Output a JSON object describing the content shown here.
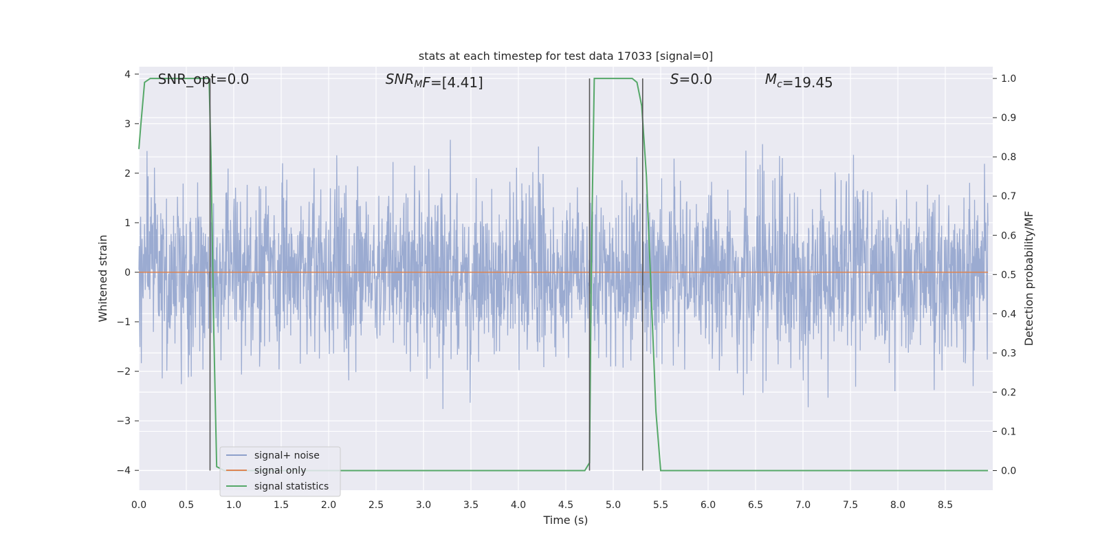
{
  "chart_data": {
    "type": "line",
    "title": "stats at each timestep for test data 17033 [signal=0]",
    "xlabel": "Time (s)",
    "ylabel_left": "Whitened strain",
    "ylabel_right": "Detection probability/MF",
    "xlim": [
      0.0,
      9.0
    ],
    "ylim_left": [
      -4.4,
      4.15
    ],
    "ylim_right": [
      -0.05,
      1.03
    ],
    "x_ticks": [
      "0.0",
      "0.5",
      "1.0",
      "1.5",
      "2.0",
      "2.5",
      "3.0",
      "3.5",
      "4.0",
      "4.5",
      "5.0",
      "5.5",
      "6.0",
      "6.5",
      "7.0",
      "7.5",
      "8.0",
      "8.5"
    ],
    "y_left_ticks": [
      "4",
      "3",
      "2",
      "1",
      "0",
      "−1",
      "−2",
      "−3",
      "−4"
    ],
    "y_right_ticks": [
      "1.0",
      "0.9",
      "0.8",
      "0.7",
      "0.6",
      "0.5",
      "0.4",
      "0.3",
      "0.2",
      "0.1",
      "0.0"
    ],
    "grid": true,
    "legend_placement": "lower-left",
    "annotations": [
      {
        "id": "snr-opt",
        "prefix": "SNR_opt",
        "suffix": "=0.0",
        "x": 0.2
      },
      {
        "id": "snr-mf",
        "prefix": "SNR",
        "sub": "M",
        "prefix2": "F",
        "suffix": "=[4.41]",
        "x": 2.6
      },
      {
        "id": "s",
        "prefix": "S",
        "suffix": "=0.0",
        "x": 5.6
      },
      {
        "id": "mc",
        "prefix": "M",
        "sub": "c",
        "suffix": "=19.45",
        "x": 6.6
      }
    ],
    "vlines": [
      0.75,
      4.75,
      5.31
    ],
    "vline_range_right": [
      0.0,
      1.0
    ],
    "series": [
      {
        "name": "signal+ noise",
        "color": "#8da0cb",
        "axis": "left",
        "generated": {
          "n": 2400,
          "seed": 17033,
          "std": 0.85,
          "x_end": 8.95
        }
      },
      {
        "name": "signal only",
        "color": "#dd8452",
        "axis": "left",
        "x": [
          0.0,
          8.95
        ],
        "y": [
          0.0,
          0.0
        ]
      },
      {
        "name": "signal statistics",
        "color": "#55a868",
        "axis": "right",
        "x": [
          0.0,
          0.02,
          0.06,
          0.12,
          0.2,
          0.4,
          0.6,
          0.7,
          0.74,
          0.76,
          0.79,
          0.82,
          0.9,
          1.0,
          2.0,
          3.0,
          4.0,
          4.5,
          4.7,
          4.75,
          4.77,
          4.8,
          4.9,
          5.0,
          5.1,
          5.2,
          5.25,
          5.3,
          5.35,
          5.4,
          5.45,
          5.5,
          5.55,
          6.0,
          7.0,
          8.0,
          8.95
        ],
        "y": [
          0.82,
          0.88,
          0.99,
          1.0,
          1.0,
          1.0,
          1.0,
          1.0,
          1.0,
          0.8,
          0.35,
          0.01,
          0.0,
          0.0,
          0.0,
          0.0,
          0.0,
          0.0,
          0.0,
          0.02,
          0.55,
          1.0,
          1.0,
          1.0,
          1.0,
          1.0,
          0.99,
          0.93,
          0.75,
          0.45,
          0.15,
          0.0,
          0.0,
          0.0,
          0.0,
          0.0,
          0.0
        ]
      }
    ]
  }
}
